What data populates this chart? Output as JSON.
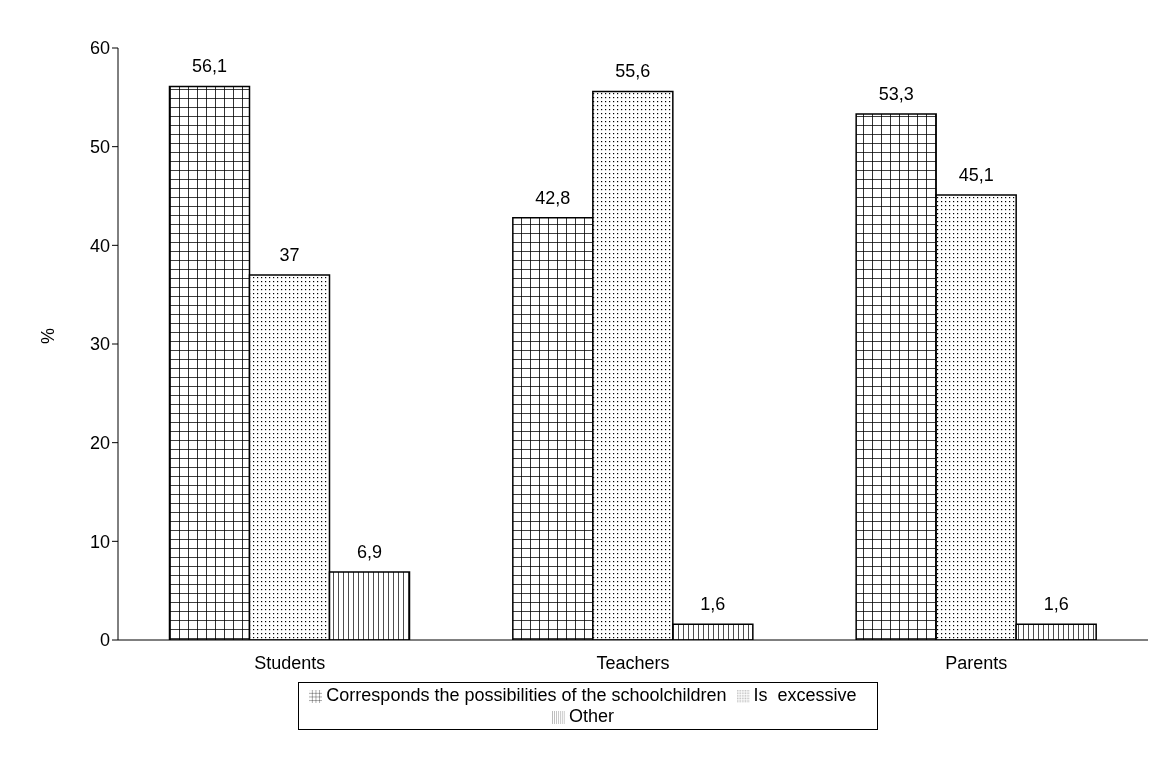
{
  "chart_data": {
    "type": "bar",
    "ylabel": "%",
    "categories": [
      "Students",
      "Teachers",
      "Parents"
    ],
    "series": [
      {
        "name": "Corresponds the possibilities of the schoolchildren",
        "color": "#000000",
        "values": [
          56.1,
          42.8,
          53.3
        ],
        "value_labels": [
          "56,1",
          "42,8",
          "53,3"
        ]
      },
      {
        "name": "Is  excessive",
        "color": "#000000",
        "values": [
          37,
          55.6,
          45.1
        ],
        "value_labels": [
          "37",
          "55,6",
          "45,1"
        ]
      },
      {
        "name": "Other",
        "color": "#000000",
        "values": [
          6.9,
          1.6,
          1.6
        ],
        "value_labels": [
          "6,9",
          "1,6",
          "1,6"
        ]
      }
    ],
    "ylim": [
      0,
      60
    ],
    "yticks": [
      0,
      10,
      20,
      30,
      40,
      50,
      60
    ],
    "grid": false,
    "legend": "bottom"
  }
}
